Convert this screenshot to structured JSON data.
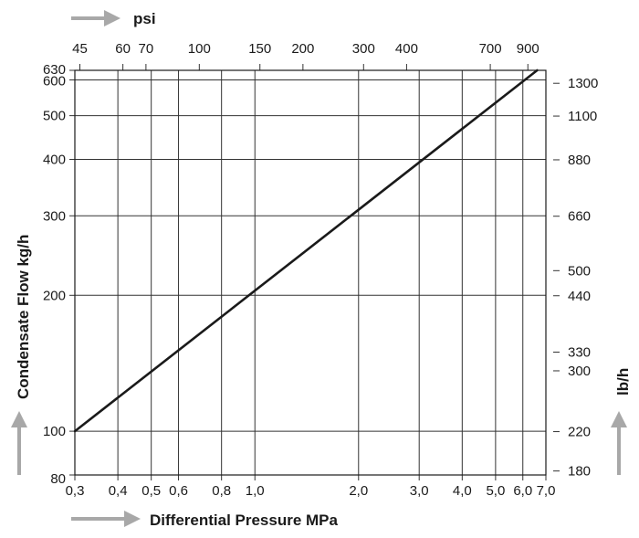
{
  "chart_data": {
    "type": "line",
    "x_axis": {
      "label": "Differential Pressure MPa",
      "scale": "log",
      "range": [
        0.3,
        7.0
      ],
      "ticks": [
        0.3,
        0.4,
        0.5,
        0.6,
        0.8,
        1.0,
        2.0,
        3.0,
        4.0,
        5.0,
        6.0,
        7.0
      ],
      "tick_labels": [
        "0,3",
        "0,4",
        "0,5",
        "0,6",
        "0,8",
        "1,0",
        "2,0",
        "3,0",
        "4,0",
        "5,0",
        "6,0",
        "7,0"
      ]
    },
    "x2_axis": {
      "label": "psi",
      "scale": "log",
      "ticks": [
        45,
        60,
        70,
        100,
        150,
        200,
        300,
        400,
        700,
        900
      ],
      "tick_labels": [
        "45",
        "60",
        "70",
        "100",
        "150",
        "200",
        "300",
        "400",
        "700",
        "900"
      ]
    },
    "y_axis": {
      "label": "Condensate Flow kg/h",
      "scale": "log",
      "range": [
        80,
        630
      ],
      "ticks": [
        80,
        100,
        200,
        300,
        400,
        500,
        600,
        630
      ],
      "tick_labels": [
        "80",
        "100",
        "200",
        "300",
        "400",
        "500",
        "600",
        "630"
      ]
    },
    "y2_axis": {
      "label": "lb/h",
      "scale": "log",
      "ticks": [
        180,
        220,
        300,
        330,
        440,
        500,
        660,
        880,
        1100,
        1300
      ],
      "tick_labels": [
        "180",
        "220",
        "300",
        "330",
        "440",
        "500",
        "660",
        "880",
        "1100",
        "1300"
      ]
    },
    "series": [
      {
        "x": [
          0.3,
          6.6
        ],
        "y": [
          100,
          630
        ],
        "color": "#1a1a1a"
      }
    ],
    "grid": true
  }
}
